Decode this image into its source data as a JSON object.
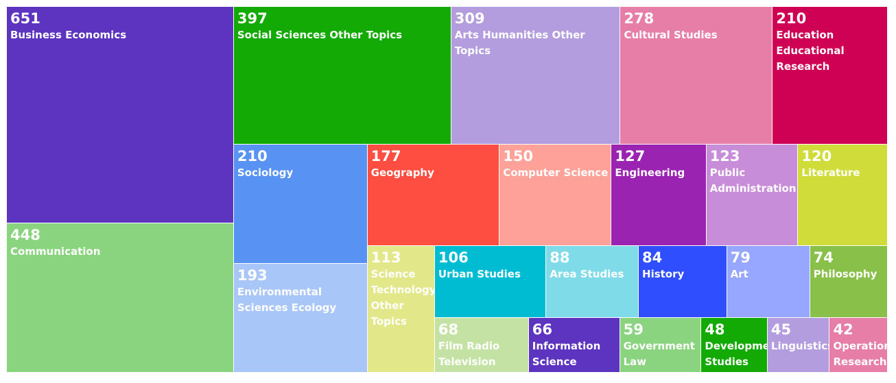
{
  "chart_data": {
    "type": "treemap",
    "items": [
      {
        "label": "Business Economics",
        "value": 651,
        "color": "#5c34c0"
      },
      {
        "label": "Communication",
        "value": 448,
        "color": "#8bd47f"
      },
      {
        "label": "Social Sciences Other Topics",
        "value": 397,
        "color": "#14aa06"
      },
      {
        "label": "Arts Humanities Other Topics",
        "value": 309,
        "color": "#b39ddf"
      },
      {
        "label": "Cultural Studies",
        "value": 278,
        "color": "#e77ea8"
      },
      {
        "label": "Education Educational Research",
        "value": 210,
        "color": "#cf0154"
      },
      {
        "label": "Sociology",
        "value": 210,
        "color": "#5893f3"
      },
      {
        "label": "Environmental Sciences Ecology",
        "value": 193,
        "color": "#a9c6f9"
      },
      {
        "label": "Geography",
        "value": 177,
        "color": "#fe4e41"
      },
      {
        "label": "Computer Science",
        "value": 150,
        "color": "#fea299"
      },
      {
        "label": "Engineering",
        "value": 127,
        "color": "#9b23b1"
      },
      {
        "label": "Public Administration",
        "value": 123,
        "color": "#c88dd8"
      },
      {
        "label": "Literature",
        "value": 120,
        "color": "#cfdc3a"
      },
      {
        "label": "Science Technology Other Topics",
        "value": 113,
        "color": "#e2e789"
      },
      {
        "label": "Urban Studies",
        "value": 106,
        "color": "#00bcd3"
      },
      {
        "label": "Area Studies",
        "value": 88,
        "color": "#80dbe9"
      },
      {
        "label": "History",
        "value": 84,
        "color": "#2f4ffe"
      },
      {
        "label": "Art",
        "value": 79,
        "color": "#97a6fe"
      },
      {
        "label": "Philosophy",
        "value": 74,
        "color": "#89c04a"
      },
      {
        "label": "Film Radio Television",
        "value": 68,
        "color": "#c4e2a4"
      },
      {
        "label": "Information Science Library Science",
        "value": 66,
        "color": "#5c34c0"
      },
      {
        "label": "Government Law",
        "value": 59,
        "color": "#8bd47f"
      },
      {
        "label": "Development Studies",
        "value": 48,
        "color": "#14aa06"
      },
      {
        "label": "Linguistics",
        "value": 45,
        "color": "#b39ddf"
      },
      {
        "label": "Operations Research Management Science",
        "value": 42,
        "color": "#e77ea8"
      }
    ]
  }
}
